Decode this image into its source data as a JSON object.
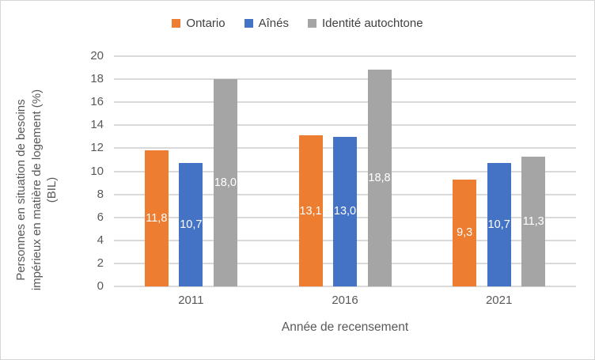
{
  "chart_data": {
    "type": "bar",
    "title": "",
    "categories": [
      "2011",
      "2016",
      "2021"
    ],
    "series": [
      {
        "name": "Ontario",
        "color": "#ED7D31",
        "values": [
          11.8,
          13.1,
          9.3
        ],
        "labels": [
          "11,8",
          "13,1",
          "9,3"
        ]
      },
      {
        "name": "Aînés",
        "color": "#4472C4",
        "values": [
          10.7,
          13.0,
          10.7
        ],
        "labels": [
          "10,7",
          "13,0",
          "10,7"
        ]
      },
      {
        "name": "Identité autochtone",
        "color": "#A5A5A5",
        "values": [
          18.0,
          18.8,
          11.3
        ],
        "labels": [
          "18,0",
          "18,8",
          "11,3"
        ]
      }
    ],
    "xlabel": "Année de recensement",
    "ylabel": "Personnes en situation de besoins impérieux en matière de logement (%) (BIL)",
    "ylabel_lines": [
      "Personnes en situation de besoins",
      "impérieux en matière de logement (%)",
      "(BIL)"
    ],
    "ylim": [
      0,
      20
    ],
    "ytick_step": 2,
    "grid": true,
    "legend_position": "top",
    "data_label_position": "center",
    "styles": {
      "grid_color": "#D9D9D9",
      "axis_label_color": "#595959",
      "legend_text_color": "#404040",
      "data_label_color": "#FFFFFF"
    }
  }
}
